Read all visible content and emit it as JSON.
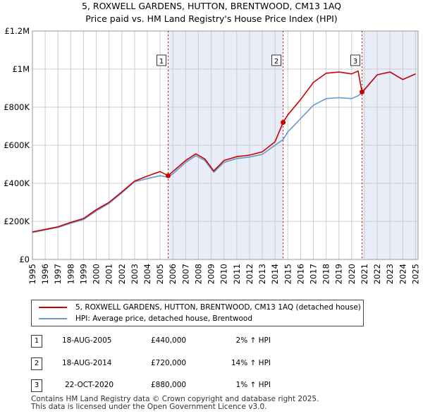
{
  "chart_data": {
    "type": "line",
    "title": "5, ROXWELL GARDENS, HUTTON, BRENTWOOD, CM13 1AQ",
    "subtitle": "Price paid vs. HM Land Registry's House Price Index (HPI)",
    "xlabel": "",
    "ylabel": "",
    "xlim": [
      1995,
      2025.2
    ],
    "ylim": [
      0,
      1200000
    ],
    "y_ticks": [
      0,
      200000,
      400000,
      600000,
      800000,
      1000000,
      1200000
    ],
    "y_tick_labels": [
      "£0",
      "£200K",
      "£400K",
      "£600K",
      "£800K",
      "£1M",
      "£1.2M"
    ],
    "x_ticks": [
      1995,
      1996,
      1997,
      1998,
      1999,
      2000,
      2001,
      2002,
      2003,
      2004,
      2005,
      2006,
      2007,
      2008,
      2009,
      2010,
      2011,
      2012,
      2013,
      2014,
      2015,
      2016,
      2017,
      2018,
      2019,
      2020,
      2021,
      2022,
      2023,
      2024,
      2025
    ],
    "x_tick_labels": [
      "1995",
      "1996",
      "1997",
      "1998",
      "1999",
      "2000",
      "2001",
      "2002",
      "2003",
      "2004",
      "2005",
      "2006",
      "2007",
      "2008",
      "2009",
      "2010",
      "2011",
      "2012",
      "2013",
      "2014",
      "2015",
      "2016",
      "2017",
      "2018",
      "2019",
      "2020",
      "2021",
      "2022",
      "2023",
      "2024",
      "2025"
    ],
    "grid": true,
    "series": [
      {
        "name": "5, ROXWELL GARDENS, HUTTON, BRENTWOOD, CM13 1AQ (detached house)",
        "color": "#cc0000",
        "x": [
          1995,
          1996,
          1997,
          1998,
          1999,
          2000,
          2001,
          2002,
          2003,
          2004,
          2005,
          2005.63,
          2006,
          2007,
          2007.8,
          2008.5,
          2009.2,
          2010,
          2011,
          2012,
          2013,
          2014,
          2014.63,
          2015,
          2016,
          2017,
          2018,
          2019,
          2020,
          2020.5,
          2020.81,
          2021,
          2022,
          2023,
          2024,
          2025
        ],
        "y": [
          145000,
          158000,
          172000,
          195000,
          215000,
          262000,
          300000,
          355000,
          412000,
          438000,
          462000,
          440000,
          462000,
          520000,
          555000,
          528000,
          465000,
          520000,
          540000,
          548000,
          565000,
          618000,
          720000,
          760000,
          840000,
          930000,
          978000,
          985000,
          975000,
          990000,
          880000,
          892000,
          970000,
          985000,
          945000,
          975000
        ]
      },
      {
        "name": "HPI: Average price, detached house, Brentwood",
        "color": "#6699cc",
        "x": [
          1995,
          1996,
          1997,
          1998,
          1999,
          2000,
          2001,
          2002,
          2003,
          2004,
          2005,
          2005.63,
          2006,
          2007,
          2007.8,
          2008.5,
          2009.2,
          2010,
          2011,
          2012,
          2013,
          2014,
          2014.63,
          2015,
          2016,
          2017,
          2018,
          2019,
          2020,
          2020.5,
          2020.81,
          2021,
          2022,
          2023,
          2024,
          2025
        ],
        "y": [
          142000,
          155000,
          168000,
          190000,
          210000,
          255000,
          295000,
          350000,
          408000,
          425000,
          440000,
          432000,
          450000,
          510000,
          545000,
          520000,
          458000,
          510000,
          530000,
          538000,
          552000,
          600000,
          630000,
          670000,
          740000,
          810000,
          845000,
          850000,
          845000,
          860000,
          875000,
          892000,
          970000,
          985000,
          945000,
          975000
        ]
      }
    ],
    "sales": [
      {
        "label": "1",
        "x": 2005.63,
        "y": 440000
      },
      {
        "label": "2",
        "x": 2014.63,
        "y": 720000
      },
      {
        "label": "3",
        "x": 2020.81,
        "y": 880000
      }
    ],
    "shaded_spans": [
      [
        2005.63,
        2014.63
      ],
      [
        2020.81,
        2025.2
      ]
    ]
  },
  "transactions": [
    {
      "num": "1",
      "date": "18-AUG-2005",
      "price": "£440,000",
      "hpi": "2% ↑ HPI"
    },
    {
      "num": "2",
      "date": "18-AUG-2014",
      "price": "£720,000",
      "hpi": "14% ↑ HPI"
    },
    {
      "num": "3",
      "date": "22-OCT-2020",
      "price": "£880,000",
      "hpi": "1% ↑ HPI"
    }
  ],
  "footer": {
    "line1": "Contains HM Land Registry data © Crown copyright and database right 2025.",
    "line2": "This data is licensed under the Open Government Licence v3.0."
  },
  "colors": {
    "property": "#cc0000",
    "hpi": "#6699cc",
    "shade": "#e8edf8",
    "grid": "#cccccc"
  }
}
